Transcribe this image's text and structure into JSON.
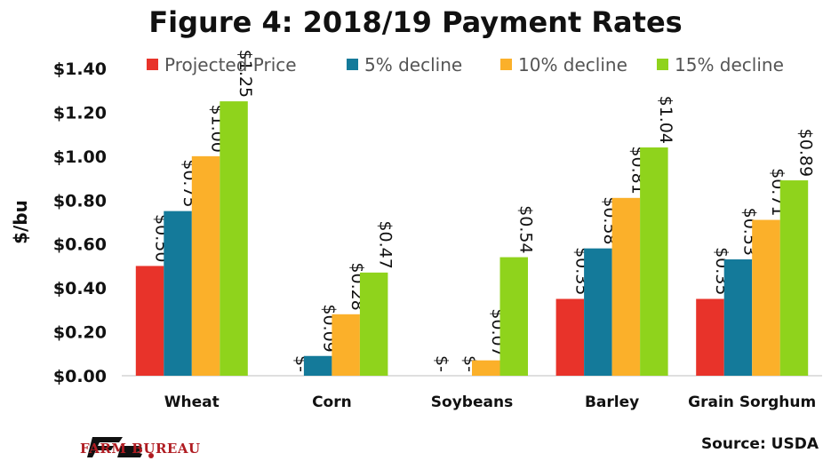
{
  "chart_data": {
    "type": "bar",
    "title": "Figure 4: 2018/19 Payment Rates",
    "ylabel": "$/bu",
    "xlabel": "",
    "ylim": [
      0,
      1.4
    ],
    "yticks": [
      "$0.00",
      "$0.20",
      "$0.40",
      "$0.60",
      "$0.80",
      "$1.00",
      "$1.20",
      "$1.40"
    ],
    "categories": [
      "Wheat",
      "Corn",
      "Soybeans",
      "Barley",
      "Grain Sorghum"
    ],
    "legend_position": "top",
    "grid": false,
    "series": [
      {
        "name": "Projected Price",
        "color": "#e8332a",
        "values": [
          0.5,
          0,
          0,
          0.35,
          0.35
        ],
        "labels": [
          "$0.50",
          "$-",
          "$-",
          "$0.35",
          "$0.35"
        ]
      },
      {
        "name": "5% decline",
        "color": "#147a9a",
        "values": [
          0.75,
          0.09,
          0,
          0.58,
          0.53
        ],
        "labels": [
          "$0.75",
          "$0.09",
          "$-",
          "$0.58",
          "$0.53"
        ]
      },
      {
        "name": "10% decline",
        "color": "#fbb02a",
        "values": [
          1.0,
          0.28,
          0.07,
          0.81,
          0.71
        ],
        "labels": [
          "$1.00",
          "$0.28",
          "$0.07",
          "$0.81",
          "$0.71"
        ]
      },
      {
        "name": "15% decline",
        "color": "#8fd31c",
        "values": [
          1.25,
          0.47,
          0.54,
          1.04,
          0.89
        ],
        "labels": [
          "$1.25",
          "$0.47",
          "$0.54",
          "$1.04",
          "$0.89"
        ]
      }
    ]
  },
  "footer": {
    "logo_text": "FARM BUREAU",
    "logo_mark": "FB",
    "source": "Source: USDA"
  }
}
